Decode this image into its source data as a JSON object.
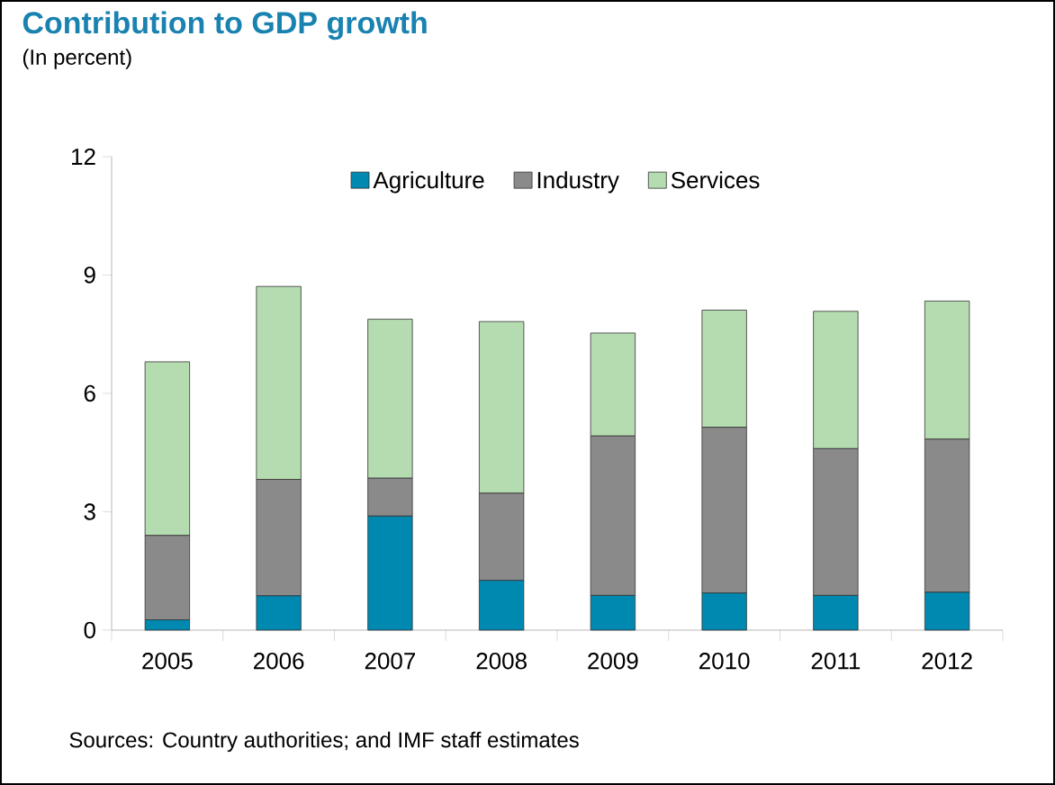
{
  "chart_data": {
    "type": "bar",
    "title": "Contribution to GDP growth",
    "subtitle": "(In percent)",
    "categories": [
      "2005",
      "2006",
      "2007",
      "2008",
      "2009",
      "2010",
      "2011",
      "2012"
    ],
    "series": [
      {
        "name": "Agriculture",
        "color": "#0089b0",
        "values": [
          0.26,
          0.87,
          2.89,
          1.26,
          0.88,
          0.94,
          0.88,
          0.96
        ]
      },
      {
        "name": "Industry",
        "color": "#8a8a8a",
        "values": [
          2.14,
          2.95,
          0.96,
          2.21,
          4.04,
          4.2,
          3.72,
          3.88
        ]
      },
      {
        "name": "Services",
        "color": "#b5dcb0",
        "values": [
          4.4,
          4.89,
          4.03,
          4.35,
          2.61,
          2.97,
          3.48,
          3.5
        ]
      }
    ],
    "stacked": true,
    "ylim": [
      0,
      12
    ],
    "yticks": [
      0,
      3,
      6,
      9,
      12
    ],
    "grid": false,
    "legend": "top",
    "annotations": [
      "Sources: Country authorities; and IMF staff estimates"
    ]
  }
}
